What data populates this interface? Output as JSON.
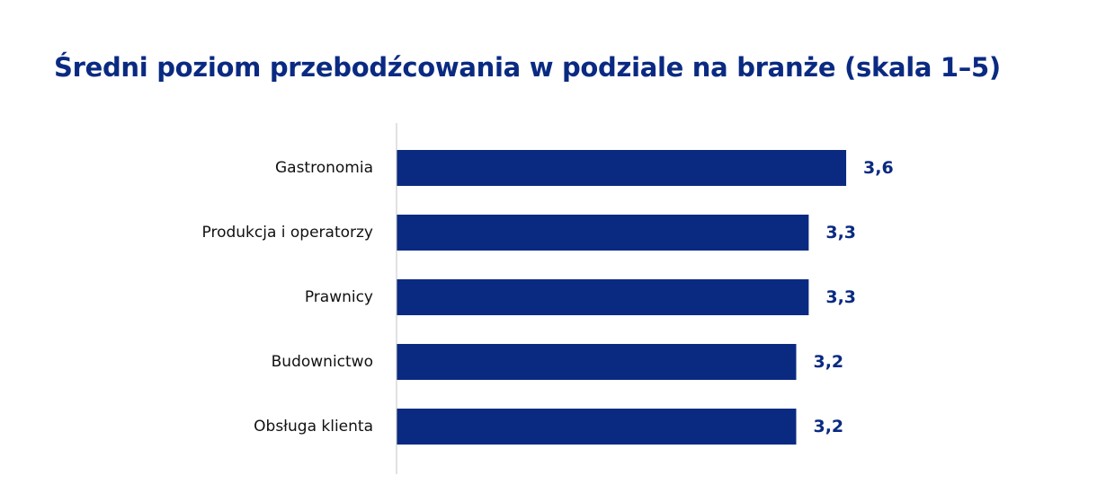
{
  "title": "Średni poziom przebodźcowania w podziale na branże (skala 1–5)",
  "colors": {
    "bar": "#0a2a82",
    "title": "#0a2a82",
    "axis": "#c4c4c4",
    "label": "#111111"
  },
  "chart_data": {
    "type": "bar",
    "orientation": "horizontal",
    "title": "Średni poziom przebodźcowania w podziale na branże (skala 1–5)",
    "categories": [
      "Gastronomia",
      "Produkcja i operatorzy",
      "Prawnicy",
      "Budownictwo",
      "Obsługa klienta"
    ],
    "values": [
      3.6,
      3.3,
      3.3,
      3.2,
      3.2
    ],
    "value_labels": [
      "3,6",
      "3,3",
      "3,3",
      "3,2",
      "3,2"
    ],
    "xlabel": "",
    "ylabel": "",
    "xlim": [
      0,
      5
    ],
    "grid": false,
    "legend": "none"
  }
}
